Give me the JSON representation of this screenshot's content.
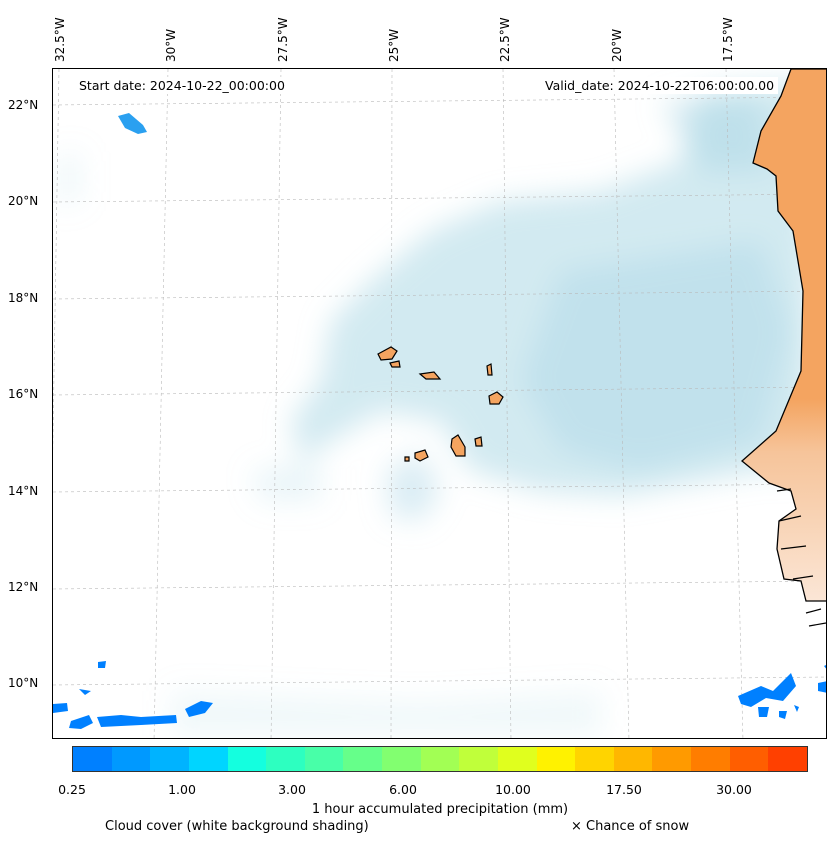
{
  "map": {
    "start_date": "Start date: 2024-10-22_00:00:00",
    "valid_date": "Valid_date: 2024-10-22T06:00:00.00",
    "lon_labels": [
      "32.5°W",
      "30°W",
      "27.5°W",
      "25°W",
      "22.5°W",
      "20°W",
      "17.5°W"
    ],
    "lat_labels": [
      "22°N",
      "20°N",
      "18°N",
      "16°N",
      "14°N",
      "12°N",
      "10°N"
    ],
    "colors": {
      "land": "#f4a460",
      "cloud": "#add8e6",
      "precip": "#0080ff",
      "coast": "#000000"
    }
  },
  "colorbar": {
    "label": "1 hour accumulated precipitation (mm)",
    "ticks": [
      "0.25",
      "1.00",
      "3.00",
      "6.00",
      "10.00",
      "17.50",
      "30.00"
    ],
    "colors": [
      "#0080ff",
      "#0099ff",
      "#00b3ff",
      "#00d5ff",
      "#14ffdf",
      "#2dffc0",
      "#48ffa8",
      "#66ff8a",
      "#82ff70",
      "#a2ff54",
      "#c0ff3a",
      "#e0ff1e",
      "#fff200",
      "#ffd400",
      "#ffb700",
      "#ff9a00",
      "#ff7d00",
      "#ff5e00",
      "#ff4000"
    ]
  },
  "legend": {
    "cloud_note": "Cloud cover (white background shading)",
    "snow_note": "× Chance of snow"
  }
}
